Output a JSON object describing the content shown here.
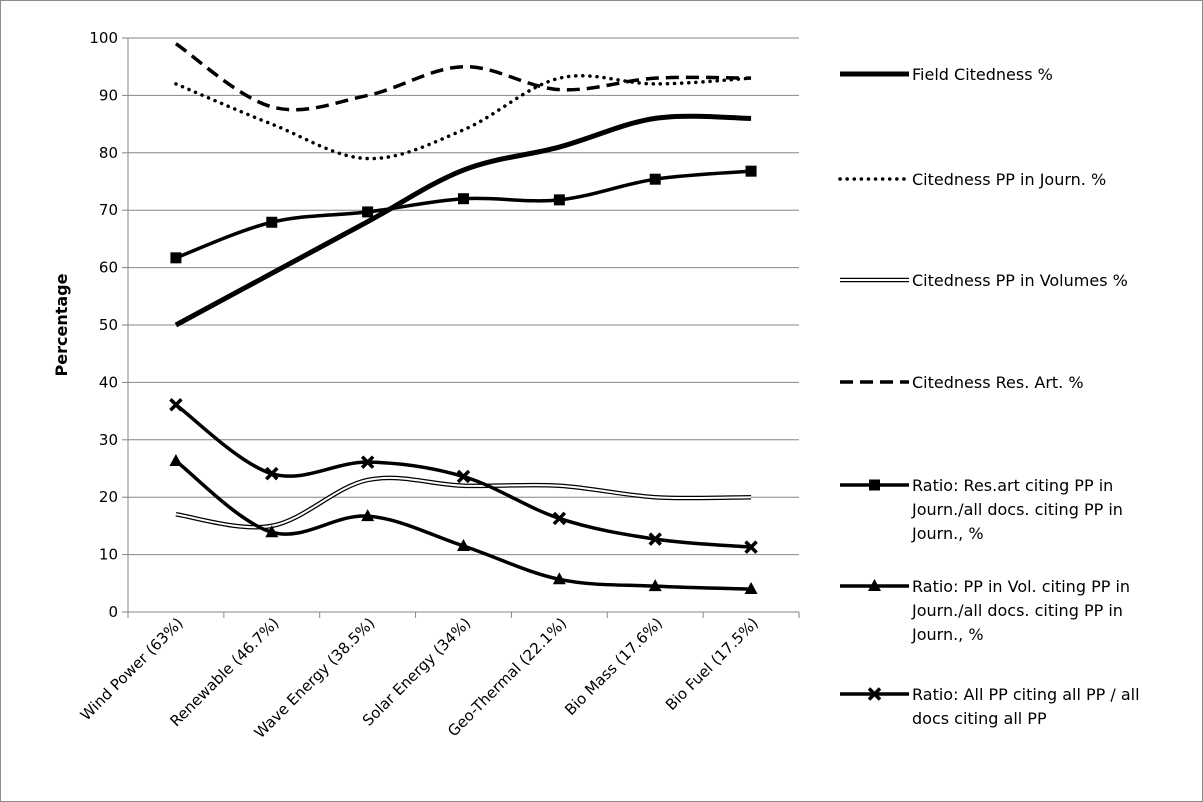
{
  "chart_data": {
    "type": "line",
    "title": "",
    "xlabel": "",
    "ylabel": "Percentage",
    "ylim": [
      0,
      100
    ],
    "yticks": [
      0,
      10,
      20,
      30,
      40,
      50,
      60,
      70,
      80,
      90,
      100
    ],
    "grid": "horizontal",
    "legend_position": "right",
    "categories": [
      "Wind Power (63%)",
      "Renewable (46.7%)",
      "Wave Energy (38.5%)",
      "Solar Energy (34%)",
      "Geo-Thermal (22.1%)",
      "Bio Mass (17.6%)",
      "Bio Fuel (17.5%)"
    ],
    "series": [
      {
        "name": "Field Citedness %",
        "style": "thick-solid",
        "values": [
          50,
          59,
          68,
          77,
          81,
          86,
          86
        ]
      },
      {
        "name": "Citedness PP in Journ. %",
        "style": "dotted",
        "values": [
          92,
          85,
          79,
          84,
          93,
          92,
          93
        ]
      },
      {
        "name": "Citedness PP in Volumes %",
        "style": "double-outline",
        "values": [
          17,
          15,
          23,
          22,
          22,
          20,
          20
        ]
      },
      {
        "name": "Citedness Res. Art. %",
        "style": "dashed",
        "values": [
          99,
          88,
          90,
          95,
          91,
          93,
          93
        ]
      },
      {
        "name": "Ratio: Res.art citing PP in Journ./all docs. citing PP in Journ., %",
        "legend_lines": [
          "Ratio: Res.art citing PP in",
          "Journ./all docs. citing PP in",
          "Journ., %"
        ],
        "style": "solid-square-markers",
        "values": [
          61.7,
          67.9,
          69.7,
          72,
          71.8,
          75.4,
          76.8
        ]
      },
      {
        "name": "Ratio: PP in Vol. citing PP in Journ./all docs. citing PP in Journ., %",
        "legend_lines": [
          "Ratio: PP in Vol. citing PP in",
          "Journ./all docs. citing PP in",
          "Journ., %"
        ],
        "style": "solid-triangle-markers",
        "values": [
          26.3,
          13.9,
          16.7,
          11.5,
          5.7,
          4.5,
          4.0
        ]
      },
      {
        "name": "Ratio: All PP citing all PP / all docs citing all PP",
        "legend_lines": [
          "Ratio: All PP citing all PP / all",
          "docs citing all PP"
        ],
        "style": "solid-x-markers",
        "values": [
          36.1,
          24.1,
          26.1,
          23.6,
          16.3,
          12.7,
          11.3
        ]
      }
    ],
    "colors": {
      "line": "#000000",
      "grid": "#868686",
      "axis": "#868686"
    }
  }
}
